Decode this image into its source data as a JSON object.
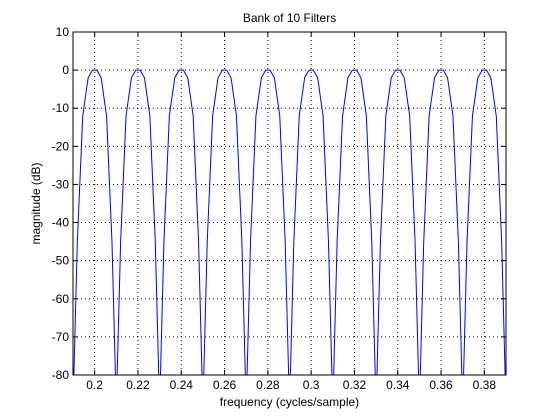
{
  "chart_data": {
    "type": "line",
    "title": "Bank of 10 Filters",
    "xlabel": "frequency (cycles/sample)",
    "ylabel": "magnitude (dB)",
    "xlim": [
      0.19,
      0.39
    ],
    "ylim": [
      -80,
      10
    ],
    "x_ticks": [
      0.2,
      0.22,
      0.24,
      0.26,
      0.28,
      0.3,
      0.32,
      0.34,
      0.36,
      0.38
    ],
    "x_tick_labels": [
      "0.2",
      "0.22",
      "0.24",
      "0.26",
      "0.28",
      "0.3",
      "0.32",
      "0.34",
      "0.36",
      "0.38"
    ],
    "y_ticks": [
      10,
      0,
      -10,
      -20,
      -30,
      -40,
      -50,
      -60,
      -70,
      -80
    ],
    "y_tick_labels": [
      "10",
      "0",
      "-10",
      "-20",
      "-30",
      "-40",
      "-50",
      "-60",
      "-70",
      "-80"
    ],
    "grid": true,
    "grid_style": "dotted",
    "line_color": "#0000ff",
    "series": [
      {
        "center": 0.2,
        "x": [
          0.1904,
          0.192,
          0.1945,
          0.197,
          0.199,
          0.2,
          0.201,
          0.203,
          0.2055,
          0.208,
          0.2096
        ],
        "y": [
          -80,
          -45,
          -12,
          -2,
          0,
          0,
          0,
          -2,
          -12,
          -45,
          -80
        ]
      },
      {
        "center": 0.22,
        "x": [
          0.2104,
          0.212,
          0.2145,
          0.217,
          0.219,
          0.22,
          0.221,
          0.223,
          0.2255,
          0.228,
          0.2296
        ],
        "y": [
          -80,
          -45,
          -12,
          -2,
          0,
          0,
          0,
          -2,
          -12,
          -45,
          -80
        ]
      },
      {
        "center": 0.24,
        "x": [
          0.2304,
          0.232,
          0.2345,
          0.237,
          0.239,
          0.24,
          0.241,
          0.243,
          0.2455,
          0.248,
          0.2496
        ],
        "y": [
          -80,
          -45,
          -12,
          -2,
          0,
          0,
          0,
          -2,
          -12,
          -45,
          -80
        ]
      },
      {
        "center": 0.26,
        "x": [
          0.2504,
          0.252,
          0.2545,
          0.257,
          0.259,
          0.26,
          0.261,
          0.263,
          0.2655,
          0.268,
          0.2696
        ],
        "y": [
          -80,
          -45,
          -12,
          -2,
          0,
          0,
          0,
          -2,
          -12,
          -45,
          -80
        ]
      },
      {
        "center": 0.28,
        "x": [
          0.2704,
          0.272,
          0.2745,
          0.277,
          0.279,
          0.28,
          0.281,
          0.283,
          0.2855,
          0.288,
          0.2896
        ],
        "y": [
          -80,
          -45,
          -12,
          -2,
          0,
          0,
          0,
          -2,
          -12,
          -45,
          -80
        ]
      },
      {
        "center": 0.3,
        "x": [
          0.2904,
          0.292,
          0.2945,
          0.297,
          0.299,
          0.3,
          0.301,
          0.303,
          0.3055,
          0.308,
          0.3096
        ],
        "y": [
          -80,
          -45,
          -12,
          -2,
          0,
          0,
          0,
          -2,
          -12,
          -45,
          -80
        ]
      },
      {
        "center": 0.32,
        "x": [
          0.3104,
          0.312,
          0.3145,
          0.317,
          0.319,
          0.32,
          0.321,
          0.323,
          0.3255,
          0.328,
          0.3296
        ],
        "y": [
          -80,
          -45,
          -12,
          -2,
          0,
          0,
          0,
          -2,
          -12,
          -45,
          -80
        ]
      },
      {
        "center": 0.34,
        "x": [
          0.3304,
          0.332,
          0.3345,
          0.337,
          0.339,
          0.34,
          0.341,
          0.343,
          0.3455,
          0.348,
          0.3496
        ],
        "y": [
          -80,
          -45,
          -12,
          -2,
          0,
          0,
          0,
          -2,
          -12,
          -45,
          -80
        ]
      },
      {
        "center": 0.36,
        "x": [
          0.3504,
          0.352,
          0.3545,
          0.357,
          0.359,
          0.36,
          0.361,
          0.363,
          0.3655,
          0.368,
          0.3696
        ],
        "y": [
          -80,
          -45,
          -12,
          -2,
          0,
          0,
          0,
          -2,
          -12,
          -45,
          -80
        ]
      },
      {
        "center": 0.38,
        "x": [
          0.3704,
          0.372,
          0.3745,
          0.377,
          0.379,
          0.38,
          0.381,
          0.383,
          0.3855,
          0.388,
          0.3896
        ],
        "y": [
          -80,
          -45,
          -12,
          -2,
          0,
          0,
          0,
          -2,
          -12,
          -45,
          -80
        ]
      }
    ]
  }
}
